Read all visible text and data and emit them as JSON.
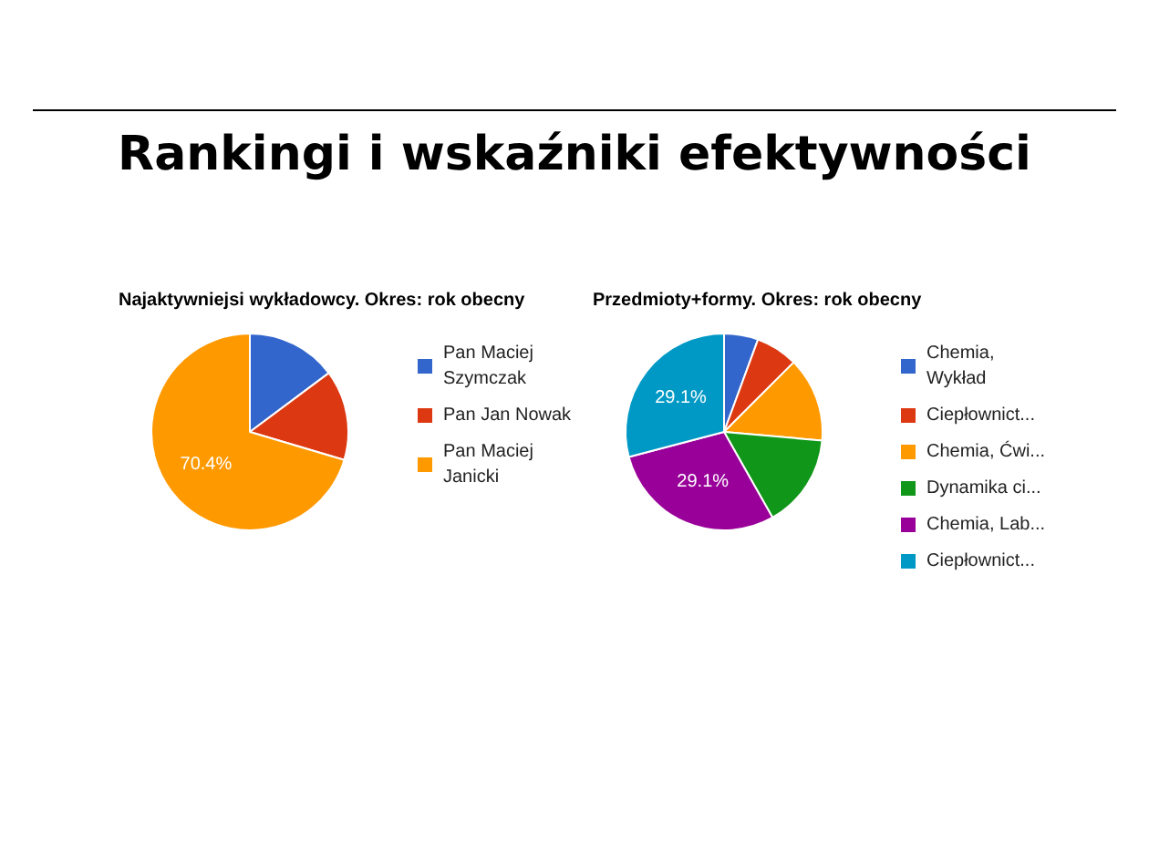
{
  "chart_data": [
    {
      "type": "other",
      "title": "Rankingi i wskaźniki efektywności"
    },
    {
      "type": "pie",
      "title": "Najaktywniejsi wykładowcy. Okres: rok obecny",
      "categories": [
        "Pan Maciej Szymczak",
        "Pan Jan Nowak",
        "Pan Maciej Janicki"
      ],
      "values": [
        14.8,
        14.8,
        70.4
      ],
      "colors": [
        "#3366cc",
        "#dc3912",
        "#ff9900"
      ],
      "value_labels": [
        null,
        null,
        "70.4%"
      ],
      "legend": "right"
    },
    {
      "type": "pie",
      "title": "Przedmioty+formy. Okres: rok obecny",
      "categories": [
        "Chemia, Wykład",
        "Ciepłownict...",
        "Chemia, Ćwi...",
        "Dynamika ci...",
        "Chemia, Lab...",
        "Ciepłownict..."
      ],
      "values": [
        5.6,
        6.9,
        13.9,
        15.4,
        29.1,
        29.1
      ],
      "colors": [
        "#3366cc",
        "#dc3912",
        "#ff9900",
        "#109618",
        "#990099",
        "#0099c6"
      ],
      "value_labels": [
        null,
        null,
        null,
        null,
        "29.1%",
        "29.1%"
      ],
      "legend": "right"
    }
  ]
}
